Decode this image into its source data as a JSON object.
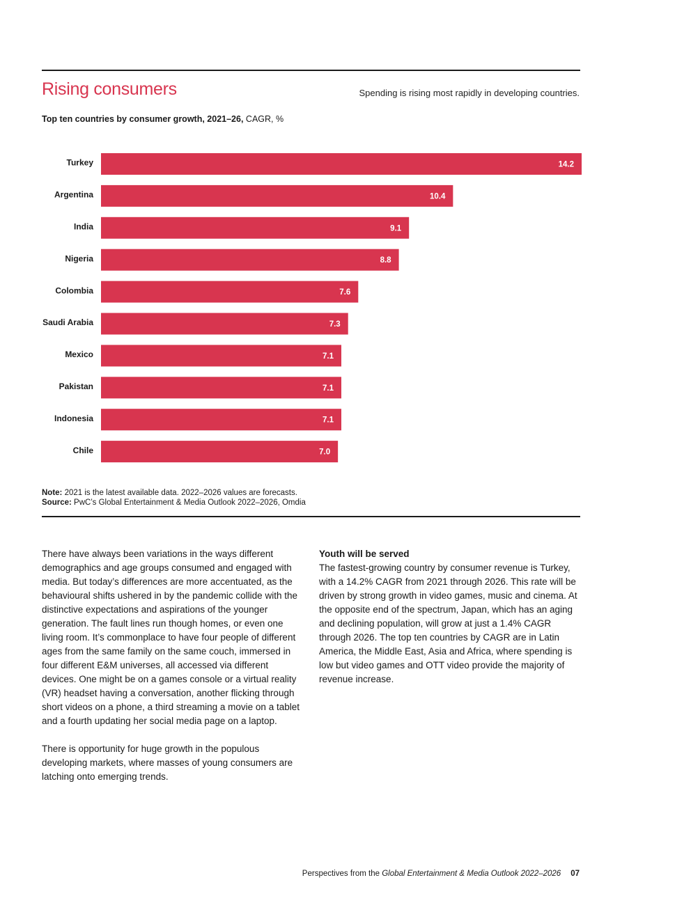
{
  "header": {
    "title": "Rising consumers",
    "tagline": "Spending is rising most rapidly in developing countries."
  },
  "chart_label": {
    "bold": "Top ten countries by consumer growth, 2021–26,",
    "rest": " CAGR, %"
  },
  "chart_data": {
    "type": "bar",
    "orientation": "horizontal",
    "categories": [
      "Turkey",
      "Argentina",
      "India",
      "Nigeria",
      "Colombia",
      "Saudi Arabia",
      "Mexico",
      "Pakistan",
      "Indonesia",
      "Chile"
    ],
    "values": [
      14.2,
      10.4,
      9.1,
      8.8,
      7.6,
      7.3,
      7.1,
      7.1,
      7.1,
      7.0
    ],
    "value_labels": [
      "14.2",
      "10.4",
      "9.1",
      "8.8",
      "7.6",
      "7.3",
      "7.1",
      "7.1",
      "7.1",
      "7.0"
    ],
    "xlim": [
      0,
      14.2
    ],
    "grid": false,
    "legend": "none",
    "bar_color": "#d8354f",
    "label_color": "#ffffff"
  },
  "note": {
    "note_label": "Note:",
    "note_text": " 2021 is the latest available data. 2022–2026 values are forecasts.",
    "source_label": "Source:",
    "source_text": " PwC’s Global Entertainment & Media Outlook 2022–2026, Omdia"
  },
  "body": {
    "left_p1": "There have always been variations in the ways different demographics and age groups consumed and engaged with media. But today’s differences are more accentuated, as the behavioural shifts ushered in by the pandemic collide with the distinctive expectations and aspirations of the younger generation. The fault lines run though homes, or even one living room. It’s commonplace to have four people of different ages from the same family on the same couch, immersed in four different E&M universes, all accessed via different devices. One might be on a games console or a virtual reality (VR) headset having a conversation, another flicking through short videos on a phone, a third streaming a movie on a tablet and a fourth updating her social media page on a laptop.",
    "left_p2": "There is opportunity for huge growth in the populous developing markets, where masses of young consumers are latching onto emerging trends.",
    "right_heading": "Youth will be served",
    "right_p1": "The fastest-growing country by consumer revenue is Turkey, with a 14.2% CAGR from 2021 through 2026. This rate will be driven by strong growth in video games, music and cinema. At the opposite end of the spectrum, Japan, which has an aging and declining population, will grow at just a 1.4% CAGR through 2026. The top ten countries by CAGR are in Latin America, the Middle East, Asia and Africa, where spending is low but video games and OTT video provide the majority of revenue increase."
  },
  "footer": {
    "prefix": "Perspectives from the ",
    "publication": "Global Entertainment & Media Outlook 2022–2026",
    "page": "07"
  }
}
